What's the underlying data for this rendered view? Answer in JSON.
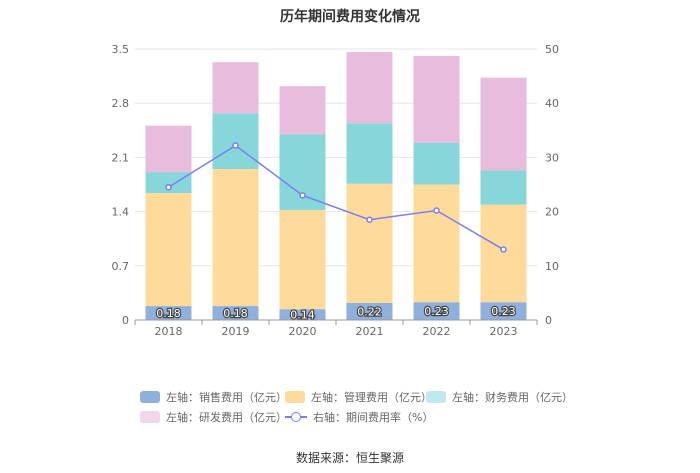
{
  "chart_data": {
    "type": "bar",
    "stacked": true,
    "title": "历年期间费用变化情况",
    "categories": [
      "2018",
      "2019",
      "2020",
      "2021",
      "2022",
      "2023"
    ],
    "y_left": {
      "min": 0,
      "max": 3.5,
      "ticks": [
        "0",
        "0.7",
        "1.4",
        "2.1",
        "2.8",
        "3.5"
      ]
    },
    "y_right": {
      "min": 0,
      "max": 50,
      "ticks": [
        "0",
        "10",
        "20",
        "30",
        "40",
        "50"
      ]
    },
    "series": [
      {
        "name": "左轴：销售费用（亿元）",
        "axis": "left",
        "color": "#8fb0dc",
        "values": [
          0.18,
          0.18,
          0.14,
          0.22,
          0.23,
          0.23
        ],
        "labels": [
          "0.18",
          "0.18",
          "0.14",
          "0.22",
          "0.23",
          "0.23"
        ]
      },
      {
        "name": "左轴：管理费用（亿元）",
        "axis": "left",
        "color": "#fedb9b",
        "values": [
          1.46,
          1.77,
          1.28,
          1.54,
          1.52,
          1.26
        ]
      },
      {
        "name": "左轴：财务费用（亿元）",
        "axis": "left",
        "color": "#87d6da",
        "values": [
          0.27,
          0.72,
          0.98,
          0.78,
          0.54,
          0.44
        ]
      },
      {
        "name": "左轴：研发费用（亿元）",
        "axis": "left",
        "color": "#e8bcdc",
        "values": [
          0.6,
          0.66,
          0.62,
          0.92,
          1.12,
          1.2
        ]
      },
      {
        "name": "右轴：期间费用率（%）",
        "axis": "right",
        "type": "line",
        "color": "#7b7ef0",
        "values": [
          24.5,
          32.2,
          23.0,
          18.5,
          20.2,
          13.0
        ]
      }
    ]
  },
  "source": "数据来源：恒生聚源"
}
